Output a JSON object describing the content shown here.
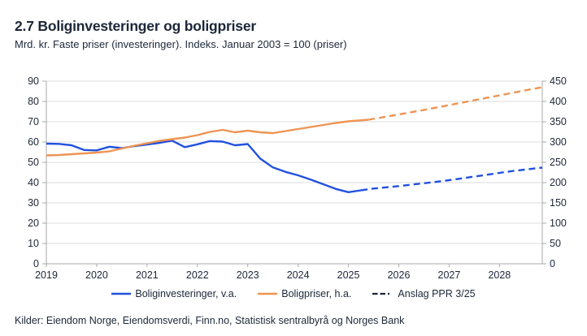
{
  "header": {
    "title": "2.7 Boliginvesteringer og boligpriser",
    "subtitle": "Mrd. kr. Faste priser (investeringer). Indeks. Januar 2003 = 100 (priser)"
  },
  "footer": {
    "sources": "Kilder: Eiendom Norge, Eiendomsverdi, Finn.no, Statistisk sentralbyrå og Norges Bank"
  },
  "colors": {
    "text": "#1c2738",
    "investment_line": "#2151de",
    "price_line": "#ee9454",
    "forecast_legend": "#1c2738",
    "grid": "#dddddd",
    "axis": "#a9a9a9"
  },
  "chart_data": {
    "type": "line",
    "title": "2.7 Boliginvesteringer og boligpriser",
    "subtitle": "Mrd. kr. Faste priser (investeringer). Indeks. Januar 2003 = 100 (priser)",
    "grid": "horizontal",
    "legend_position": "bottom",
    "x_axis": {
      "range": [
        2019,
        2028.85
      ],
      "ticks": [
        2019,
        2020,
        2021,
        2022,
        2023,
        2024,
        2025,
        2026,
        2027,
        2028
      ]
    },
    "y_axis_left": {
      "range": [
        0,
        90
      ],
      "ticks": [
        0,
        10,
        20,
        30,
        40,
        50,
        60,
        70,
        80,
        90
      ]
    },
    "y_axis_right": {
      "range": [
        0,
        450
      ],
      "ticks": [
        0,
        50,
        100,
        150,
        200,
        250,
        300,
        350,
        400,
        450
      ]
    },
    "legend": [
      {
        "label": "Boliginvesteringer, v.a.",
        "color": "#2151de",
        "style": "solid"
      },
      {
        "label": "Boligpriser, h.a.",
        "color": "#ee9454",
        "style": "solid"
      },
      {
        "label": "Anslag PPR 3/25",
        "color": "#1c2738",
        "style": "dashdot"
      }
    ],
    "series": [
      {
        "name": "Boliginvesteringer, v.a.",
        "axis": "left",
        "style": "solid",
        "color": "#2151de",
        "x": [
          2019.0,
          2019.25,
          2019.5,
          2019.75,
          2020.0,
          2020.25,
          2020.5,
          2020.75,
          2021.0,
          2021.25,
          2021.5,
          2021.75,
          2022.0,
          2022.25,
          2022.5,
          2022.75,
          2023.0,
          2023.25,
          2023.5,
          2023.75,
          2024.0,
          2024.25,
          2024.5,
          2024.75,
          2025.0,
          2025.25
        ],
        "y": [
          59.2,
          59.1,
          58.4,
          56.1,
          55.9,
          57.7,
          57.0,
          58.0,
          58.8,
          59.6,
          60.7,
          57.5,
          58.9,
          60.5,
          60.2,
          58.4,
          59.0,
          51.8,
          47.5,
          45.3,
          43.6,
          41.5,
          39.2,
          36.9,
          35.3,
          36.2
        ]
      },
      {
        "name": "Boliginvesteringer, anslag PPR 3/25",
        "axis": "left",
        "style": "dashed",
        "color": "#2151de",
        "x": [
          2025.25,
          2025.5,
          2025.75,
          2026.0,
          2026.25,
          2026.5,
          2026.75,
          2027.0,
          2027.25,
          2027.5,
          2027.75,
          2028.0,
          2028.25,
          2028.5,
          2028.85
        ],
        "y": [
          36.2,
          37.1,
          37.7,
          38.3,
          39.0,
          39.7,
          40.4,
          41.2,
          42.1,
          43.0,
          43.9,
          44.8,
          45.7,
          46.4,
          47.4
        ]
      },
      {
        "name": "Boligpriser, h.a.",
        "axis": "right",
        "style": "solid",
        "color": "#ee9454",
        "x": [
          2019.0,
          2019.25,
          2019.5,
          2019.75,
          2020.0,
          2020.25,
          2020.5,
          2020.75,
          2021.0,
          2021.25,
          2021.5,
          2021.75,
          2022.0,
          2022.25,
          2022.5,
          2022.75,
          2023.0,
          2023.25,
          2023.5,
          2023.75,
          2024.0,
          2024.25,
          2024.5,
          2024.75,
          2025.0,
          2025.4
        ],
        "y": [
          267,
          268,
          270,
          272,
          274,
          277,
          284,
          291,
          297,
          303,
          307,
          311,
          317,
          325,
          330,
          324,
          328,
          324,
          322,
          327,
          332,
          337,
          342,
          347,
          351,
          355
        ]
      },
      {
        "name": "Boligpriser, anslag PPR 3/25",
        "axis": "right",
        "style": "dashed",
        "color": "#ee9454",
        "x": [
          2025.4,
          2026.0,
          2026.5,
          2027.0,
          2027.5,
          2028.0,
          2028.5,
          2028.85
        ],
        "y": [
          355,
          368,
          379,
          391,
          403,
          415,
          427,
          435
        ]
      }
    ]
  }
}
